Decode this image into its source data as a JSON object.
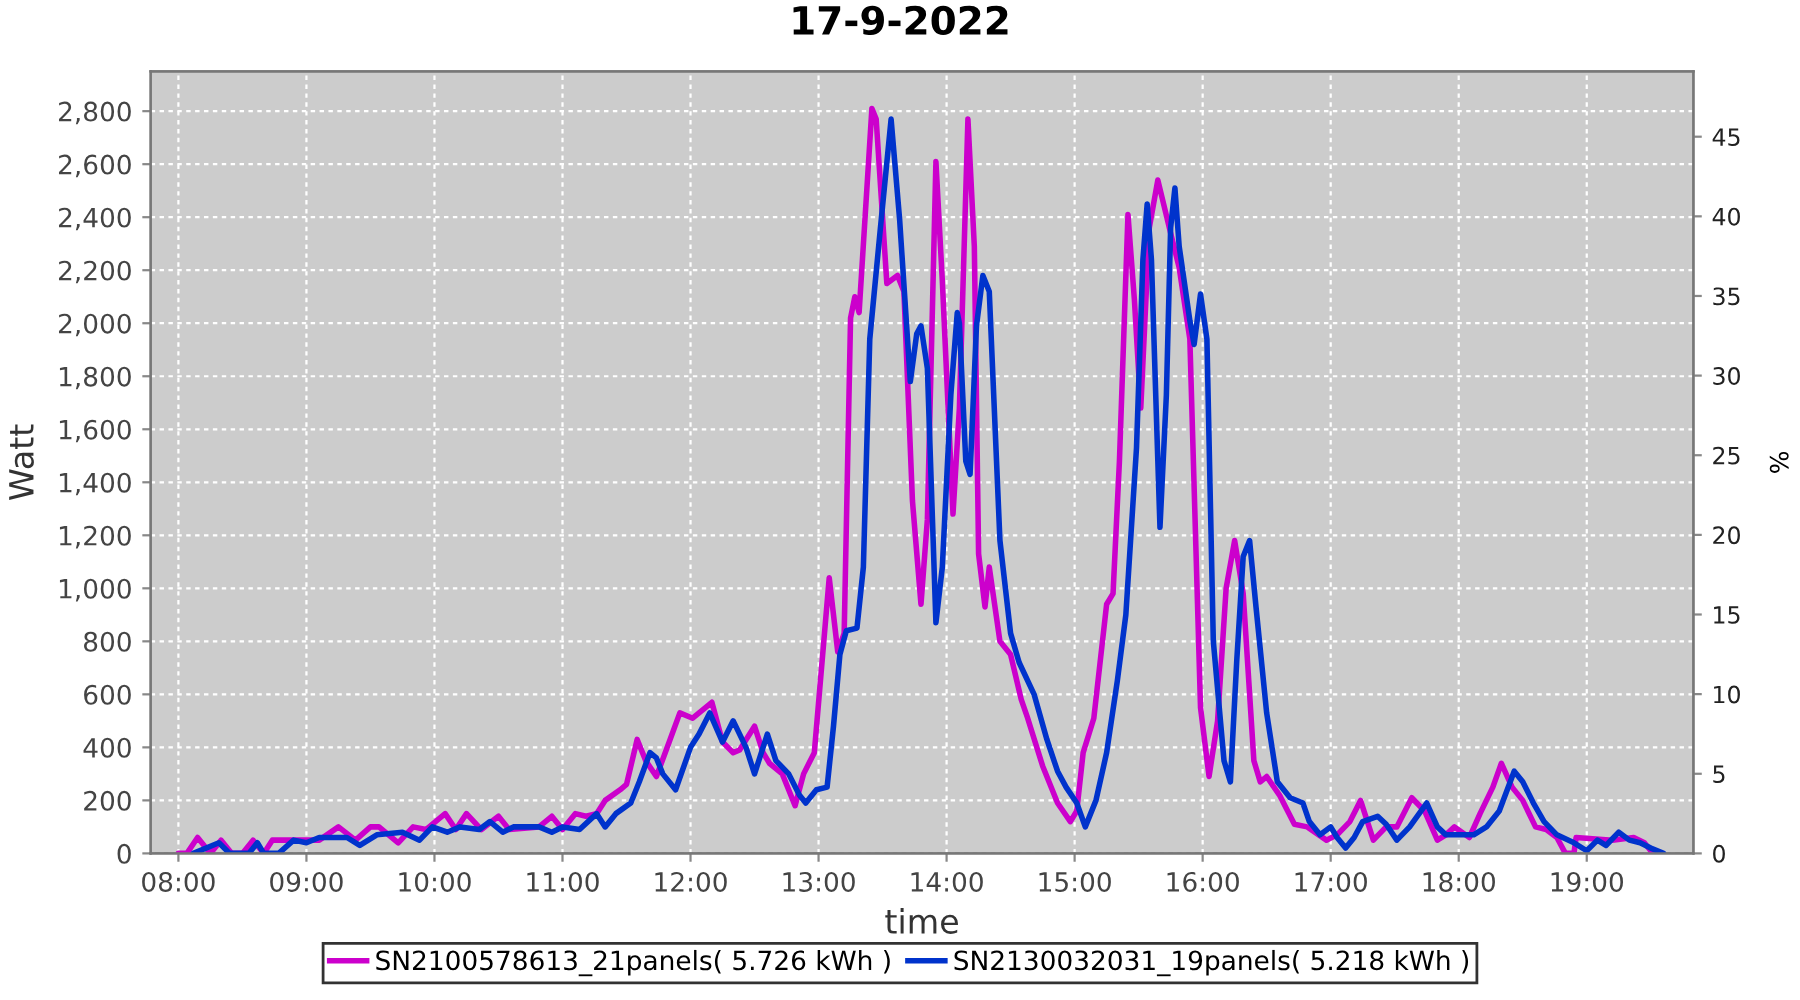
{
  "chart_data": {
    "type": "line",
    "title": "17-9-2022",
    "xlabel": "time",
    "ylabel": "Watt",
    "y2label": "%",
    "xlim": [
      "2022-09-17T07:47",
      "2022-09-17T19:50"
    ],
    "xticks": [
      {
        "value": "2022-09-17T08:00",
        "label": "08:00"
      },
      {
        "value": "2022-09-17T09:00",
        "label": "09:00"
      },
      {
        "value": "2022-09-17T10:00",
        "label": "10:00"
      },
      {
        "value": "2022-09-17T11:00",
        "label": "11:00"
      },
      {
        "value": "2022-09-17T12:00",
        "label": "12:00"
      },
      {
        "value": "2022-09-17T13:00",
        "label": "13:00"
      },
      {
        "value": "2022-09-17T14:00",
        "label": "14:00"
      },
      {
        "value": "2022-09-17T15:00",
        "label": "15:00"
      },
      {
        "value": "2022-09-17T16:00",
        "label": "16:00"
      },
      {
        "value": "2022-09-17T17:00",
        "label": "17:00"
      },
      {
        "value": "2022-09-17T18:00",
        "label": "18:00"
      },
      {
        "value": "2022-09-17T19:00",
        "label": "19:00"
      }
    ],
    "ylim": [
      0,
      2950
    ],
    "yticks": [
      0,
      200,
      400,
      600,
      800,
      {
        "value": 1000,
        "label": "1,000"
      },
      {
        "value": 1200,
        "label": "1,200"
      },
      {
        "value": 1400,
        "label": "1,400"
      },
      {
        "value": 1600,
        "label": "1,600"
      },
      {
        "value": 1800,
        "label": "1,800"
      },
      {
        "value": 2000,
        "label": "2,000"
      },
      {
        "value": 2200,
        "label": "2,200"
      },
      {
        "value": 2400,
        "label": "2,400"
      },
      {
        "value": 2600,
        "label": "2,600"
      },
      {
        "value": 2800,
        "label": "2,800"
      }
    ],
    "y2lim": [
      0,
      49.1
    ],
    "y2ticks": [
      0,
      5,
      10,
      15,
      20,
      25,
      30,
      35,
      40,
      45
    ],
    "grid": true,
    "legend": "bottom",
    "line_style": "solid",
    "series": [
      {
        "name": "SN2100578613_21panels( 5.726 kWh )",
        "color": "#cc00cc",
        "x": [
          "2022-09-17T08:00",
          "2022-09-17T08:04",
          "2022-09-17T08:09",
          "2022-09-17T08:15",
          "2022-09-17T08:20",
          "2022-09-17T08:25",
          "2022-09-17T08:30",
          "2022-09-17T08:35",
          "2022-09-17T08:40",
          "2022-09-17T08:44",
          "2022-09-17T09:00",
          "2022-09-17T09:06",
          "2022-09-17T09:15",
          "2022-09-17T09:23",
          "2022-09-17T09:30",
          "2022-09-17T09:34",
          "2022-09-17T09:43",
          "2022-09-17T09:50",
          "2022-09-17T09:56",
          "2022-09-17T10:05",
          "2022-09-17T10:10",
          "2022-09-17T10:15",
          "2022-09-17T10:22",
          "2022-09-17T10:30",
          "2022-09-17T10:35",
          "2022-09-17T10:49",
          "2022-09-17T10:55",
          "2022-09-17T11:00",
          "2022-09-17T11:06",
          "2022-09-17T11:11",
          "2022-09-17T11:16",
          "2022-09-17T11:20",
          "2022-09-17T11:27",
          "2022-09-17T11:30",
          "2022-09-17T11:35",
          "2022-09-17T11:39",
          "2022-09-17T11:44",
          "2022-09-17T11:50",
          "2022-09-17T11:55",
          "2022-09-17T12:01",
          "2022-09-17T12:10",
          "2022-09-17T12:15",
          "2022-09-17T12:20",
          "2022-09-17T12:23",
          "2022-09-17T12:30",
          "2022-09-17T12:34",
          "2022-09-17T12:37",
          "2022-09-17T12:43",
          "2022-09-17T12:49",
          "2022-09-17T12:53",
          "2022-09-17T12:58",
          "2022-09-17T13:05",
          "2022-09-17T13:09",
          "2022-09-17T13:12",
          "2022-09-17T13:15",
          "2022-09-17T13:17",
          "2022-09-17T13:19",
          "2022-09-17T13:25",
          "2022-09-17T13:27",
          "2022-09-17T13:32",
          "2022-09-17T13:37",
          "2022-09-17T13:40",
          "2022-09-17T13:44",
          "2022-09-17T13:48",
          "2022-09-17T13:51",
          "2022-09-17T13:55",
          "2022-09-17T13:58",
          "2022-09-17T14:03",
          "2022-09-17T14:06",
          "2022-09-17T14:10",
          "2022-09-17T14:13",
          "2022-09-17T14:15",
          "2022-09-17T14:18",
          "2022-09-17T14:20",
          "2022-09-17T14:25",
          "2022-09-17T14:30",
          "2022-09-17T14:35",
          "2022-09-17T14:38",
          "2022-09-17T14:45",
          "2022-09-17T14:52",
          "2022-09-17T14:58",
          "2022-09-17T15:01",
          "2022-09-17T15:04",
          "2022-09-17T15:09",
          "2022-09-17T15:15",
          "2022-09-17T15:18",
          "2022-09-17T15:21",
          "2022-09-17T15:25",
          "2022-09-17T15:28",
          "2022-09-17T15:31",
          "2022-09-17T15:35",
          "2022-09-17T15:39",
          "2022-09-17T15:45",
          "2022-09-17T15:49",
          "2022-09-17T15:54",
          "2022-09-17T15:59",
          "2022-09-17T16:03",
          "2022-09-17T16:07",
          "2022-09-17T16:11",
          "2022-09-17T16:15",
          "2022-09-17T16:19",
          "2022-09-17T16:24",
          "2022-09-17T16:27",
          "2022-09-17T16:30",
          "2022-09-17T16:36",
          "2022-09-17T16:43",
          "2022-09-17T16:49",
          "2022-09-17T16:58",
          "2022-09-17T17:03",
          "2022-09-17T17:09",
          "2022-09-17T17:14",
          "2022-09-17T17:20",
          "2022-09-17T17:26",
          "2022-09-17T17:31",
          "2022-09-17T17:38",
          "2022-09-17T17:44",
          "2022-09-17T17:50",
          "2022-09-17T17:54",
          "2022-09-17T17:58",
          "2022-09-17T18:05",
          "2022-09-17T18:10",
          "2022-09-17T18:16",
          "2022-09-17T18:20",
          "2022-09-17T18:25",
          "2022-09-17T18:30",
          "2022-09-17T18:36",
          "2022-09-17T18:41",
          "2022-09-17T18:46",
          "2022-09-17T18:50",
          "2022-09-17T18:54",
          "2022-09-17T18:55",
          "2022-09-17T19:12",
          "2022-09-17T19:22",
          "2022-09-17T19:27",
          "2022-09-17T19:31"
        ],
        "values": [
          0,
          0,
          60,
          0,
          50,
          0,
          0,
          50,
          0,
          50,
          50,
          50,
          100,
          50,
          100,
          100,
          40,
          100,
          90,
          150,
          90,
          150,
          90,
          140,
          90,
          100,
          140,
          90,
          150,
          140,
          150,
          200,
          240,
          260,
          430,
          350,
          290,
          420,
          530,
          510,
          570,
          420,
          380,
          390,
          480,
          380,
          340,
          300,
          180,
          300,
          380,
          1040,
          760,
          830,
          2020,
          2100,
          2040,
          2810,
          2770,
          2150,
          2180,
          2120,
          1330,
          940,
          1260,
          2610,
          2160,
          1280,
          1680,
          2770,
          2290,
          1130,
          930,
          1080,
          800,
          750,
          580,
          510,
          330,
          190,
          120,
          160,
          380,
          510,
          940,
          980,
          1480,
          2410,
          2090,
          1680,
          2360,
          2540,
          2340,
          2210,
          1940,
          550,
          290,
          500,
          1000,
          1180,
          980,
          350,
          270,
          290,
          220,
          110,
          100,
          50,
          70,
          120,
          200,
          50,
          100,
          100,
          210,
          160,
          50,
          70,
          100,
          60,
          150,
          250,
          340,
          250,
          200,
          100,
          90,
          60,
          0,
          0,
          60,
          50,
          60,
          40,
          0
        ]
      },
      {
        "name": "SN2130032031_19panels( 5.218 kWh )",
        "color": "#0033cc",
        "x": [
          "2022-09-17T08:07",
          "2022-09-17T08:19",
          "2022-09-17T08:24",
          "2022-09-17T08:33",
          "2022-09-17T08:37",
          "2022-09-17T08:40",
          "2022-09-17T08:47",
          "2022-09-17T08:54",
          "2022-09-17T09:00",
          "2022-09-17T09:06",
          "2022-09-17T09:19",
          "2022-09-17T09:25",
          "2022-09-17T09:33",
          "2022-09-17T09:45",
          "2022-09-17T09:53",
          "2022-09-17T09:59",
          "2022-09-17T10:06",
          "2022-09-17T10:12",
          "2022-09-17T10:21",
          "2022-09-17T10:26",
          "2022-09-17T10:32",
          "2022-09-17T10:37",
          "2022-09-17T10:49",
          "2022-09-17T10:55",
          "2022-09-17T11:00",
          "2022-09-17T11:08",
          "2022-09-17T11:16",
          "2022-09-17T11:20",
          "2022-09-17T11:25",
          "2022-09-17T11:32",
          "2022-09-17T11:36",
          "2022-09-17T11:41",
          "2022-09-17T11:44",
          "2022-09-17T11:47",
          "2022-09-17T11:53",
          "2022-09-17T12:00",
          "2022-09-17T12:04",
          "2022-09-17T12:09",
          "2022-09-17T12:15",
          "2022-09-17T12:20",
          "2022-09-17T12:26",
          "2022-09-17T12:30",
          "2022-09-17T12:36",
          "2022-09-17T12:40",
          "2022-09-17T12:46",
          "2022-09-17T12:51",
          "2022-09-17T12:54",
          "2022-09-17T12:59",
          "2022-09-17T13:04",
          "2022-09-17T13:07",
          "2022-09-17T13:10",
          "2022-09-17T13:13",
          "2022-09-17T13:18",
          "2022-09-17T13:21",
          "2022-09-17T13:24",
          "2022-09-17T13:29",
          "2022-09-17T13:34",
          "2022-09-17T13:38",
          "2022-09-17T13:43",
          "2022-09-17T13:46",
          "2022-09-17T13:48",
          "2022-09-17T13:51",
          "2022-09-17T13:55",
          "2022-09-17T13:58",
          "2022-09-17T14:02",
          "2022-09-17T14:05",
          "2022-09-17T14:06",
          "2022-09-17T14:09",
          "2022-09-17T14:11",
          "2022-09-17T14:14",
          "2022-09-17T14:17",
          "2022-09-17T14:20",
          "2022-09-17T14:25",
          "2022-09-17T14:30",
          "2022-09-17T14:34",
          "2022-09-17T14:41",
          "2022-09-17T14:47",
          "2022-09-17T14:52",
          "2022-09-17T14:56",
          "2022-09-17T15:01",
          "2022-09-17T15:05",
          "2022-09-17T15:10",
          "2022-09-17T15:15",
          "2022-09-17T15:20",
          "2022-09-17T15:24",
          "2022-09-17T15:29",
          "2022-09-17T15:32",
          "2022-09-17T15:34",
          "2022-09-17T15:36",
          "2022-09-17T15:39",
          "2022-09-17T15:40",
          "2022-09-17T15:43",
          "2022-09-17T15:45",
          "2022-09-17T15:47",
          "2022-09-17T15:49",
          "2022-09-17T15:54",
          "2022-09-17T15:56",
          "2022-09-17T15:59",
          "2022-09-17T16:02",
          "2022-09-17T16:05",
          "2022-09-17T16:10",
          "2022-09-17T16:13",
          "2022-09-17T16:16",
          "2022-09-17T16:19",
          "2022-09-17T16:22",
          "2022-09-17T16:25",
          "2022-09-17T16:30",
          "2022-09-17T16:35",
          "2022-09-17T16:41",
          "2022-09-17T16:47",
          "2022-09-17T16:50",
          "2022-09-17T16:55",
          "2022-09-17T17:00",
          "2022-09-17T17:03",
          "2022-09-17T17:07",
          "2022-09-17T17:11",
          "2022-09-17T17:15",
          "2022-09-17T17:22",
          "2022-09-17T17:26",
          "2022-09-17T17:31",
          "2022-09-17T17:37",
          "2022-09-17T17:45",
          "2022-09-17T17:50",
          "2022-09-17T17:54",
          "2022-09-17T18:01",
          "2022-09-17T18:07",
          "2022-09-17T18:13",
          "2022-09-17T18:19",
          "2022-09-17T18:26",
          "2022-09-17T18:30",
          "2022-09-17T18:35",
          "2022-09-17T18:40",
          "2022-09-17T18:46",
          "2022-09-17T18:54",
          "2022-09-17T19:00",
          "2022-09-17T19:05",
          "2022-09-17T19:09",
          "2022-09-17T19:15",
          "2022-09-17T19:20",
          "2022-09-17T19:25",
          "2022-09-17T19:30",
          "2022-09-17T19:36"
        ],
        "values": [
          0,
          40,
          0,
          0,
          40,
          0,
          0,
          50,
          40,
          60,
          60,
          30,
          70,
          80,
          50,
          100,
          80,
          100,
          90,
          120,
          80,
          100,
          100,
          80,
          100,
          90,
          150,
          100,
          150,
          190,
          270,
          380,
          360,
          300,
          240,
          400,
          450,
          530,
          420,
          500,
          400,
          300,
          450,
          350,
          300,
          220,
          190,
          240,
          250,
          480,
          750,
          840,
          850,
          1080,
          1940,
          2360,
          2770,
          2390,
          1780,
          1960,
          1990,
          1830,
          870,
          1080,
          1730,
          2040,
          2000,
          1480,
          1430,
          1990,
          2180,
          2120,
          1180,
          830,
          720,
          600,
          430,
          310,
          250,
          190,
          100,
          200,
          380,
          650,
          900,
          1530,
          2240,
          2450,
          2240,
          1480,
          1230,
          1730,
          2360,
          2510,
          2290,
          2010,
          1920,
          2110,
          1940,
          800,
          350,
          270,
          730,
          1120,
          1180,
          930,
          530,
          270,
          210,
          190,
          120,
          70,
          100,
          60,
          20,
          60,
          120,
          140,
          110,
          50,
          100,
          190,
          100,
          70,
          70,
          70,
          100,
          160,
          310,
          270,
          190,
          120,
          70,
          40,
          10,
          50,
          30,
          80,
          50,
          40,
          20,
          0
        ]
      }
    ]
  }
}
